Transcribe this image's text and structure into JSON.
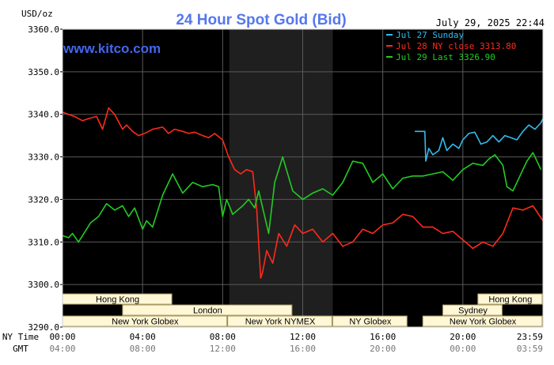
{
  "chart_data": {
    "type": "line",
    "title": "24 Hour Spot Gold (Bid)",
    "ylabel": "USD/oz",
    "timestamp": "July 29, 2025 22:44",
    "watermark": "www.kitco.com",
    "ylim": [
      3290,
      3360
    ],
    "y_ticks": [
      "3360.0",
      "3350.0",
      "3340.0",
      "3330.0",
      "3320.0",
      "3310.0",
      "3300.0",
      "3290.0"
    ],
    "x_row_labels": {
      "ny": "NY Time",
      "gmt": "GMT"
    },
    "x_ticks_ny": [
      "00:00",
      "04:00",
      "08:00",
      "12:00",
      "16:00",
      "20:00",
      "23:59"
    ],
    "x_ticks_gmt": [
      "04:00",
      "08:00",
      "12:00",
      "16:00",
      "20:00",
      "00:00",
      "03:59"
    ],
    "grid": true,
    "legend": [
      {
        "label": "Jul 27 Sunday",
        "color": "#33bbee"
      },
      {
        "label": "Jul 28 NY close 3313.80",
        "color": "#ff2a1a"
      },
      {
        "label": "Jul 29 Last 3326.90",
        "color": "#22cc22"
      }
    ],
    "sessions": [
      {
        "label": "Hong Kong",
        "start_hour": 0,
        "end_hour": 5.5,
        "row": 0
      },
      {
        "label": "London",
        "start_hour": 3,
        "end_hour": 11.5,
        "row": 1
      },
      {
        "label": "New York Globex",
        "start_hour": 0,
        "end_hour": 8.25,
        "row": 2
      },
      {
        "label": "New York NYMEX",
        "start_hour": 8.25,
        "end_hour": 13.5,
        "row": 2
      },
      {
        "label": "NY Globex",
        "start_hour": 13.5,
        "end_hour": 17.25,
        "row": 2
      },
      {
        "label": "Hong Kong",
        "start_hour": 20.75,
        "end_hour": 24,
        "row": 0
      },
      {
        "label": "Sydney",
        "start_hour": 19,
        "end_hour": 22,
        "row": 1
      },
      {
        "label": "New York Globex",
        "start_hour": 18,
        "end_hour": 24,
        "row": 2
      }
    ],
    "nymex_hours": [
      8.33,
      13.5
    ],
    "series": [
      {
        "name": "Jul 27 Sunday",
        "color": "#33bbee",
        "x": [
          17.6,
          18.1,
          18.15,
          18.3,
          18.5,
          18.8,
          19.0,
          19.2,
          19.5,
          19.8,
          20.0,
          20.3,
          20.6,
          20.9,
          21.2,
          21.5,
          21.8,
          22.1,
          22.4,
          22.7,
          23.0,
          23.3,
          23.6,
          23.9,
          24.0
        ],
        "y": [
          3336.0,
          3336.0,
          3329.0,
          3332.0,
          3330.5,
          3331.5,
          3334.5,
          3331.5,
          3333.0,
          3332.0,
          3334.0,
          3335.5,
          3335.8,
          3333.0,
          3333.5,
          3335.0,
          3333.5,
          3335.0,
          3334.5,
          3334.0,
          3336.0,
          3337.5,
          3336.5,
          3338.0,
          3339.0
        ]
      },
      {
        "name": "Jul 28 NY close 3313.80",
        "color": "#ff2a1a",
        "x": [
          0.0,
          0.3,
          0.6,
          1.0,
          1.3,
          1.7,
          2.0,
          2.3,
          2.6,
          3.0,
          3.2,
          3.5,
          3.8,
          4.1,
          4.5,
          5.0,
          5.3,
          5.6,
          6.0,
          6.3,
          6.6,
          7.0,
          7.3,
          7.6,
          8.0,
          8.3,
          8.6,
          8.9,
          9.2,
          9.5,
          9.7,
          9.9,
          10.0,
          10.2,
          10.5,
          10.8,
          11.2,
          11.6,
          12.0,
          12.5,
          13.0,
          13.5,
          14.0,
          14.5,
          15.0,
          15.5,
          16.0,
          16.5,
          17.0,
          17.5,
          18.0,
          18.5,
          19.0,
          19.5,
          20.0,
          20.5,
          21.0,
          21.5,
          22.0,
          22.5,
          23.0,
          23.5,
          24.0
        ],
        "y": [
          3340.5,
          3340.0,
          3339.5,
          3338.5,
          3339.0,
          3339.5,
          3336.5,
          3341.5,
          3340.0,
          3336.5,
          3337.5,
          3336.0,
          3335.0,
          3335.5,
          3336.5,
          3337.0,
          3335.5,
          3336.5,
          3336.0,
          3335.5,
          3335.8,
          3335.0,
          3334.5,
          3335.5,
          3334.0,
          3330.0,
          3327.0,
          3326.0,
          3327.0,
          3326.5,
          3318.0,
          3301.5,
          3303.0,
          3308.0,
          3305.0,
          3312.0,
          3309.0,
          3314.0,
          3312.0,
          3313.0,
          3310.0,
          3312.0,
          3309.0,
          3310.0,
          3313.0,
          3312.0,
          3314.0,
          3314.5,
          3316.5,
          3316.0,
          3313.5,
          3313.5,
          3312.0,
          3312.5,
          3310.5,
          3308.5,
          3310.0,
          3309.0,
          3312.0,
          3318.0,
          3317.5,
          3318.5,
          3315.0
        ]
      },
      {
        "name": "Jul 29 Last 3326.90",
        "color": "#22cc22",
        "x": [
          0.0,
          0.3,
          0.5,
          0.8,
          1.0,
          1.4,
          1.8,
          2.2,
          2.6,
          3.0,
          3.3,
          3.6,
          4.0,
          4.2,
          4.5,
          5.0,
          5.5,
          6.0,
          6.5,
          7.0,
          7.5,
          7.8,
          8.0,
          8.2,
          8.5,
          9.0,
          9.3,
          9.6,
          9.8,
          10.0,
          10.3,
          10.6,
          11.0,
          11.5,
          12.0,
          12.5,
          13.0,
          13.5,
          14.0,
          14.5,
          15.0,
          15.5,
          16.0,
          16.5,
          17.0,
          17.5,
          18.0,
          18.5,
          19.0,
          19.5,
          20.0,
          20.5,
          21.0,
          21.3,
          21.6,
          22.0,
          22.2,
          22.5,
          22.8,
          23.0,
          23.2,
          23.5,
          23.9
        ],
        "y": [
          3311.5,
          3311.0,
          3312.0,
          3310.0,
          3311.5,
          3314.5,
          3316.0,
          3319.0,
          3317.5,
          3318.5,
          3316.0,
          3318.0,
          3313.0,
          3315.0,
          3313.5,
          3321.0,
          3326.0,
          3321.5,
          3324.0,
          3323.0,
          3323.5,
          3323.0,
          3316.0,
          3320.0,
          3316.5,
          3318.5,
          3320.0,
          3318.0,
          3322.0,
          3318.0,
          3312.0,
          3324.0,
          3330.0,
          3322.0,
          3320.0,
          3321.5,
          3322.5,
          3321.0,
          3324.0,
          3329.0,
          3328.5,
          3324.0,
          3326.0,
          3322.5,
          3325.0,
          3325.5,
          3325.5,
          3326.0,
          3326.5,
          3324.5,
          3327.0,
          3328.5,
          3328.0,
          3329.5,
          3330.5,
          3328.0,
          3323.0,
          3322.0,
          3325.0,
          3327.0,
          3329.0,
          3331.0,
          3327.0
        ]
      }
    ]
  }
}
